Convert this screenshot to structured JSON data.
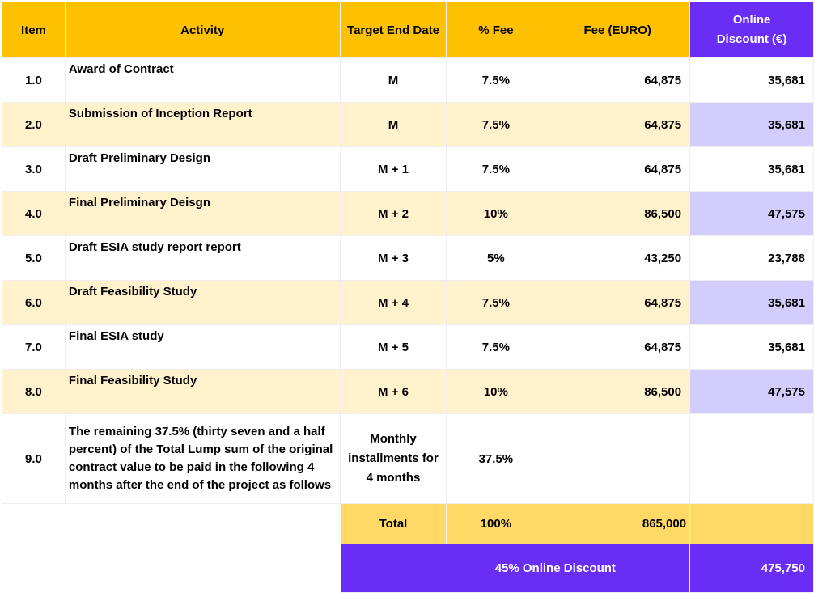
{
  "headers": {
    "item": "Item",
    "activity": "Activity",
    "target": "Target End Date",
    "pct": "% Fee",
    "fee": "Fee (EURO)",
    "discount_line1": "Online",
    "discount_line2": "Discount (€)"
  },
  "rows": [
    {
      "item": "1.0",
      "activity": "Award of Contract",
      "target": "M",
      "pct": "7.5%",
      "fee": "64,875",
      "discount": "35,681"
    },
    {
      "item": "2.0",
      "activity": "Submission of Inception Report",
      "target": "M",
      "pct": "7.5%",
      "fee": "64,875",
      "discount": "35,681"
    },
    {
      "item": "3.0",
      "activity": "Draft Preliminary Design",
      "target": "M + 1",
      "pct": "7.5%",
      "fee": "64,875",
      "discount": "35,681"
    },
    {
      "item": "4.0",
      "activity": "Final Preliminary Deisgn",
      "target": "M + 2",
      "pct": "10%",
      "fee": "86,500",
      "discount": "47,575"
    },
    {
      "item": "5.0",
      "activity": "Draft ESIA study report report",
      "target": "M + 3",
      "pct": "5%",
      "fee": "43,250",
      "discount": "23,788"
    },
    {
      "item": "6.0",
      "activity": "Draft Feasibility Study",
      "target": "M + 4",
      "pct": "7.5%",
      "fee": "64,875",
      "discount": "35,681"
    },
    {
      "item": "7.0",
      "activity": "Final ESIA study",
      "target": "M + 5",
      "pct": "7.5%",
      "fee": "64,875",
      "discount": "35,681"
    },
    {
      "item": "8.0",
      "activity": "Final Feasibility Study",
      "target": "M + 6",
      "pct": "10%",
      "fee": "86,500",
      "discount": "47,575"
    }
  ],
  "last_row": {
    "item": "9.0",
    "activity_lines": [
      "The remaining 37.5% (thirty seven and a half",
      "percent) of the Total Lump sum of the original",
      "contract value to be paid in the following 4",
      "months after the end of the project as follows"
    ],
    "target_lines": [
      "Monthly",
      "installments for",
      "4 months"
    ],
    "pct": "37.5%"
  },
  "total": {
    "label": "Total",
    "pct": "100%",
    "fee": "865,000"
  },
  "online_discount": {
    "label": "45%  Online Discount",
    "value": "475,750"
  },
  "colors": {
    "header_yellow": "#fdc101",
    "row_cream": "#fff2cc",
    "purple": "#6a2df5",
    "lavender": "#d2cdfd",
    "total_yellow": "#fed966"
  }
}
